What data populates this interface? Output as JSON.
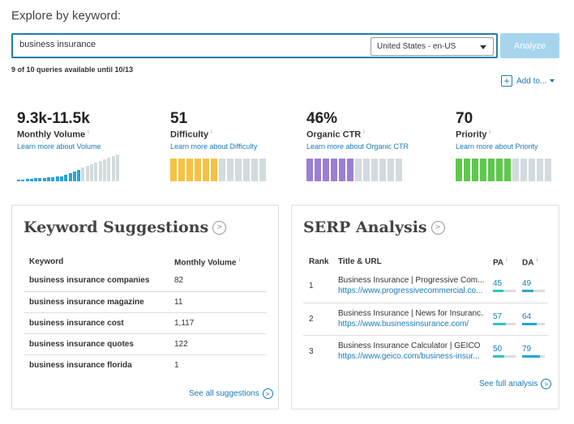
{
  "heading": "Explore by keyword:",
  "search": {
    "value": "business insurance",
    "locale": "United States - en-US",
    "analyze_label": "Analyze"
  },
  "quota": "9 of 10 queries available until 10/13",
  "add_to": "Add to...",
  "metrics": [
    {
      "value": "9.3k-11.5k",
      "label": "Monthly Volume",
      "learn": "Learn more about Volume"
    },
    {
      "value": "51",
      "label": "Difficulty",
      "learn": "Learn more about Difficulty"
    },
    {
      "value": "46%",
      "label": "Organic CTR",
      "learn": "Learn more about Organic CTR"
    },
    {
      "value": "70",
      "label": "Priority",
      "learn": "Learn more about Priority"
    }
  ],
  "colors": {
    "accent": "#1a7ab8",
    "volume": "#29a3d9",
    "difficulty": "#f7c143",
    "ctr": "#9b7fd4",
    "priority": "#5dc94b",
    "bar_empty": "#d3dbdf"
  },
  "bar_fill": {
    "difficulty": 0.5,
    "organic_ctr": 0.5,
    "priority": 0.6
  },
  "suggestions": {
    "title": "Keyword Suggestions",
    "col_keyword": "Keyword",
    "col_volume": "Monthly Volume",
    "rows": [
      {
        "keyword": "business insurance companies",
        "volume": "82"
      },
      {
        "keyword": "business insurance magazine",
        "volume": "11"
      },
      {
        "keyword": "business insurance cost",
        "volume": "1,117"
      },
      {
        "keyword": "business insurance quotes",
        "volume": "122"
      },
      {
        "keyword": "business insurance florida",
        "volume": "1"
      }
    ],
    "see_all": "See all suggestions"
  },
  "serp": {
    "title": "SERP Analysis",
    "col_rank": "Rank",
    "col_title": "Title & URL",
    "col_pa": "PA",
    "col_da": "DA",
    "rows": [
      {
        "rank": "1",
        "title": "Business Insurance | Progressive Com...",
        "url": "https://www.progressivecommercial.co...",
        "pa": "45",
        "da": "49"
      },
      {
        "rank": "2",
        "title": "Business Insurance | News for Insuranc...",
        "url": "https://www.businessinsurance.com/",
        "pa": "57",
        "da": "64"
      },
      {
        "rank": "3",
        "title": "Business Insurance Calculator | GEICO",
        "url": "https://www.geico.com/business-insur...",
        "pa": "50",
        "da": "79"
      }
    ],
    "see_full": "See full analysis"
  }
}
